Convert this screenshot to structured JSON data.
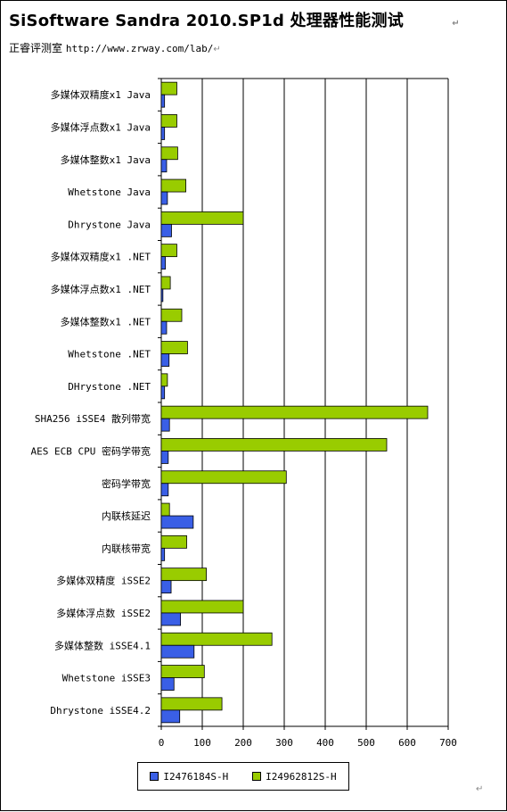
{
  "header": {
    "title": "SiSoftware Sandra 2010.SP1d 处理器性能测试",
    "source_name": "正睿评测室",
    "source_url": "http://www.zrway.com/lab/"
  },
  "colors": {
    "series1": "#3a5fe6",
    "series2": "#99cc00",
    "bar_border": "#000000"
  },
  "chart_data": {
    "type": "bar",
    "orientation": "horizontal",
    "title": "",
    "xlabel": "",
    "ylabel": "",
    "xlim": [
      0,
      700
    ],
    "xticks": [
      0,
      100,
      200,
      300,
      400,
      500,
      600,
      700
    ],
    "grid": true,
    "legend_position": "bottom",
    "categories": [
      "多媒体双精度x1 Java",
      "多媒体浮点数x1 Java",
      "多媒体整数x1 Java",
      "Whetstone Java",
      "Dhrystone Java",
      "多媒体双精度x1 .NET",
      "多媒体浮点数x1 .NET",
      "多媒体整数x1 .NET",
      "Whetstone .NET",
      "DHrystone .NET",
      "SHA256 iSSE4 散列带宽",
      "AES ECB CPU 密码学带宽",
      "密码学带宽",
      "内联核延迟",
      "内联核带宽",
      "多媒体双精度 iSSE2",
      "多媒体浮点数 iSSE2",
      "多媒体整数 iSSE4.1",
      "Whetstone iSSE3",
      "Dhrystone iSSE4.2"
    ],
    "series": [
      {
        "name": "I2476184S-H",
        "values": [
          8,
          8,
          13,
          15,
          25,
          10,
          4,
          13,
          19,
          8,
          20,
          17,
          17,
          78,
          8,
          24,
          47,
          80,
          31,
          45
        ]
      },
      {
        "name": "I24962812S-H",
        "values": [
          38,
          38,
          40,
          60,
          200,
          38,
          22,
          50,
          64,
          15,
          650,
          550,
          305,
          20,
          62,
          110,
          200,
          270,
          105,
          148
        ]
      }
    ]
  }
}
